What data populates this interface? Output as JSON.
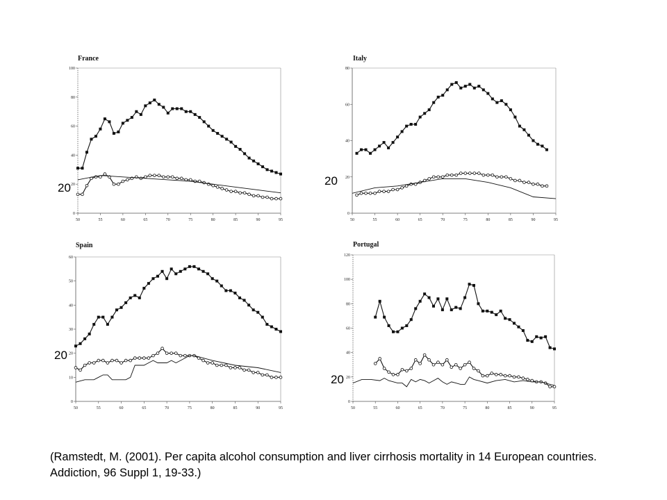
{
  "citation": "(Ramstedt, M. (2001). Per capita alcohol consumption and liver cirrhosis mortality in 14 European countries. Addiction, 96 Suppl 1, 19-33.)",
  "colors": {
    "series": "#111111",
    "axis": "#555555",
    "marker_fill_open": "#ffffff"
  },
  "chart_data": [
    {
      "type": "line",
      "title": "France",
      "side_label": "20",
      "x_ticks": [
        "50",
        "55",
        "60",
        "65",
        "70",
        "75",
        "80",
        "85",
        "90",
        "95"
      ],
      "y_ticks": [
        "0",
        "20",
        "40",
        "60",
        "80",
        "100"
      ],
      "xlim": [
        50,
        95
      ],
      "ylim": [
        0,
        100
      ],
      "series": [
        {
          "marker": "filled",
          "x": [
            50,
            51,
            52,
            53,
            54,
            55,
            56,
            57,
            58,
            59,
            60,
            61,
            62,
            63,
            64,
            65,
            66,
            67,
            68,
            69,
            70,
            71,
            72,
            73,
            74,
            75,
            76,
            77,
            78,
            79,
            80,
            81,
            82,
            83,
            84,
            85,
            86,
            87,
            88,
            89,
            90,
            91,
            92,
            93,
            94,
            95
          ],
          "values": [
            31,
            31,
            42,
            51,
            53,
            58,
            65,
            63,
            55,
            56,
            62,
            64,
            66,
            70,
            68,
            74,
            76,
            78,
            75,
            73,
            69,
            72,
            72,
            72,
            70,
            70,
            68,
            66,
            63,
            60,
            57,
            55,
            53,
            51,
            49,
            46,
            44,
            41,
            38,
            36,
            34,
            32,
            30,
            29,
            28,
            27
          ]
        },
        {
          "marker": "open",
          "x": [
            50,
            51,
            52,
            53,
            54,
            55,
            56,
            57,
            58,
            59,
            60,
            61,
            62,
            63,
            64,
            65,
            66,
            67,
            68,
            69,
            70,
            71,
            72,
            73,
            74,
            75,
            76,
            77,
            78,
            79,
            80,
            81,
            82,
            83,
            84,
            85,
            86,
            87,
            88,
            89,
            90,
            91,
            92,
            93,
            94,
            95
          ],
          "values": [
            13,
            13,
            19,
            24,
            25,
            25,
            27,
            25,
            20,
            20,
            22,
            23,
            24,
            25,
            24,
            25,
            26,
            26,
            26,
            25,
            25,
            25,
            24,
            24,
            23,
            23,
            22,
            22,
            21,
            20,
            19,
            18,
            17,
            16,
            15,
            15,
            14,
            14,
            13,
            12,
            12,
            11,
            11,
            10,
            10,
            10
          ]
        },
        {
          "marker": "none",
          "x": [
            50,
            55,
            60,
            65,
            70,
            75,
            80,
            85,
            90,
            95
          ],
          "values": [
            23,
            26,
            25,
            24,
            23,
            22,
            20,
            18,
            16,
            14
          ]
        }
      ]
    },
    {
      "type": "line",
      "title": "Italy",
      "side_label": "20",
      "x_ticks": [
        "50",
        "55",
        "60",
        "65",
        "70",
        "75",
        "80",
        "85",
        "90",
        "95"
      ],
      "y_ticks": [
        "0",
        "20",
        "40",
        "60",
        "80"
      ],
      "xlim": [
        50,
        95
      ],
      "ylim": [
        0,
        80
      ],
      "series": [
        {
          "marker": "filled",
          "x": [
            51,
            52,
            53,
            54,
            55,
            56,
            57,
            58,
            59,
            60,
            61,
            62,
            63,
            64,
            65,
            66,
            67,
            68,
            69,
            70,
            71,
            72,
            73,
            74,
            75,
            76,
            77,
            78,
            79,
            80,
            81,
            82,
            83,
            84,
            85,
            86,
            87,
            88,
            89,
            90,
            91,
            92,
            93
          ],
          "values": [
            33,
            35,
            35,
            33,
            35,
            37,
            39,
            36,
            39,
            42,
            45,
            48,
            49,
            49,
            53,
            55,
            57,
            61,
            64,
            65,
            68,
            71,
            72,
            69,
            70,
            71,
            69,
            70,
            68,
            66,
            63,
            61,
            62,
            60,
            57,
            53,
            48,
            46,
            43,
            40,
            38,
            37,
            35
          ]
        },
        {
          "marker": "open",
          "x": [
            51,
            52,
            53,
            54,
            55,
            56,
            57,
            58,
            59,
            60,
            61,
            62,
            63,
            64,
            65,
            66,
            67,
            68,
            69,
            70,
            71,
            72,
            73,
            74,
            75,
            76,
            77,
            78,
            79,
            80,
            81,
            82,
            83,
            84,
            85,
            86,
            87,
            88,
            89,
            90,
            91,
            92,
            93
          ],
          "values": [
            10,
            11,
            11,
            11,
            11,
            12,
            12,
            12,
            13,
            13,
            14,
            15,
            16,
            16,
            17,
            18,
            19,
            20,
            20,
            20,
            21,
            21,
            21,
            22,
            22,
            22,
            22,
            22,
            21,
            21,
            21,
            20,
            20,
            20,
            19,
            18,
            18,
            17,
            17,
            16,
            16,
            15,
            15
          ]
        },
        {
          "marker": "none",
          "x": [
            50,
            55,
            60,
            65,
            70,
            75,
            80,
            85,
            90,
            95
          ],
          "values": [
            11,
            14,
            15,
            17,
            19,
            19,
            17,
            14,
            9,
            8
          ]
        }
      ]
    },
    {
      "type": "line",
      "title": "Spain",
      "side_label": "20",
      "x_ticks": [
        "50",
        "55",
        "60",
        "65",
        "70",
        "75",
        "80",
        "85",
        "90",
        "95"
      ],
      "y_ticks": [
        "0",
        "10",
        "20",
        "30",
        "40",
        "50",
        "60"
      ],
      "xlim": [
        50,
        95
      ],
      "ylim": [
        0,
        60
      ],
      "series": [
        {
          "marker": "filled",
          "x": [
            50,
            51,
            52,
            53,
            54,
            55,
            56,
            57,
            58,
            59,
            60,
            61,
            62,
            63,
            64,
            65,
            66,
            67,
            68,
            69,
            70,
            71,
            72,
            73,
            74,
            75,
            76,
            77,
            78,
            79,
            80,
            81,
            82,
            83,
            84,
            85,
            86,
            87,
            88,
            89,
            90,
            91,
            92,
            93,
            94,
            95
          ],
          "values": [
            23,
            24,
            26,
            28,
            32,
            35,
            35,
            32,
            35,
            38,
            39,
            41,
            43,
            44,
            43,
            47,
            49,
            51,
            52,
            54,
            51,
            55,
            53,
            54,
            55,
            56,
            56,
            55,
            54,
            53,
            51,
            50,
            48,
            46,
            46,
            45,
            43,
            42,
            40,
            38,
            37,
            35,
            32,
            31,
            30,
            29
          ]
        },
        {
          "marker": "open",
          "x": [
            50,
            51,
            52,
            53,
            54,
            55,
            56,
            57,
            58,
            59,
            60,
            61,
            62,
            63,
            64,
            65,
            66,
            67,
            68,
            69,
            70,
            71,
            72,
            73,
            74,
            75,
            76,
            77,
            78,
            79,
            80,
            81,
            82,
            83,
            84,
            85,
            86,
            87,
            88,
            89,
            90,
            91,
            92,
            93,
            94,
            95
          ],
          "values": [
            14,
            13,
            15,
            16,
            16,
            17,
            17,
            16,
            17,
            17,
            16,
            17,
            17,
            18,
            18,
            18,
            18,
            19,
            20,
            22,
            20,
            20,
            20,
            19,
            19,
            19,
            19,
            18,
            17,
            16,
            16,
            15,
            15,
            15,
            14,
            14,
            14,
            13,
            13,
            12,
            12,
            11,
            11,
            10,
            10,
            10
          ]
        },
        {
          "marker": "none",
          "x": [
            50,
            52,
            54,
            55,
            56,
            57,
            58,
            59,
            60,
            61,
            62,
            63,
            64,
            65,
            66,
            67,
            68,
            69,
            70,
            71,
            72,
            73,
            74,
            75,
            76,
            78,
            80,
            85,
            90,
            95
          ],
          "values": [
            8,
            9,
            9,
            10,
            11,
            11,
            9,
            9,
            9,
            9,
            10,
            15,
            15,
            15,
            16,
            17,
            16,
            16,
            16,
            17,
            16,
            17,
            18,
            19,
            19,
            18,
            17,
            15,
            14,
            12
          ]
        }
      ]
    },
    {
      "type": "line",
      "title": "Portugal",
      "side_label": "20",
      "x_ticks": [
        "50",
        "55",
        "60",
        "65",
        "70",
        "75",
        "80",
        "85",
        "90",
        "95"
      ],
      "y_ticks": [
        "0",
        "20",
        "40",
        "60",
        "80",
        "100",
        "120"
      ],
      "xlim": [
        50,
        95
      ],
      "ylim": [
        0,
        120
      ],
      "series": [
        {
          "marker": "filled",
          "x": [
            55,
            56,
            57,
            58,
            59,
            60,
            61,
            62,
            63,
            64,
            65,
            66,
            67,
            68,
            69,
            70,
            71,
            72,
            73,
            74,
            75,
            76,
            77,
            78,
            79,
            80,
            81,
            82,
            83,
            84,
            85,
            86,
            87,
            88,
            89,
            90,
            91,
            92,
            93,
            94,
            95
          ],
          "values": [
            69,
            82,
            69,
            62,
            57,
            57,
            60,
            62,
            67,
            76,
            82,
            88,
            85,
            78,
            84,
            75,
            84,
            75,
            77,
            76,
            85,
            96,
            95,
            80,
            74,
            74,
            73,
            71,
            74,
            68,
            67,
            64,
            61,
            58,
            50,
            49,
            53,
            52,
            53,
            44,
            43
          ]
        },
        {
          "marker": "open",
          "x": [
            55,
            56,
            57,
            58,
            59,
            60,
            61,
            62,
            63,
            64,
            65,
            66,
            67,
            68,
            69,
            70,
            71,
            72,
            73,
            74,
            75,
            76,
            77,
            78,
            79,
            80,
            81,
            82,
            83,
            84,
            85,
            86,
            87,
            88,
            89,
            90,
            91,
            92,
            93,
            94,
            95
          ],
          "values": [
            31,
            35,
            27,
            24,
            22,
            22,
            26,
            25,
            27,
            34,
            31,
            38,
            34,
            30,
            32,
            30,
            34,
            28,
            30,
            27,
            30,
            32,
            27,
            25,
            21,
            21,
            23,
            22,
            22,
            21,
            21,
            20,
            20,
            19,
            18,
            17,
            16,
            16,
            15,
            12,
            12
          ]
        },
        {
          "marker": "none",
          "x": [
            50,
            52,
            54,
            56,
            57,
            58,
            60,
            61,
            62,
            63,
            64,
            65,
            66,
            67,
            68,
            69,
            70,
            71,
            72,
            73,
            74,
            75,
            76,
            77,
            78,
            80,
            82,
            84,
            86,
            88,
            90,
            92,
            94,
            95
          ],
          "values": [
            15,
            18,
            18,
            17,
            19,
            17,
            15,
            15,
            12,
            18,
            16,
            18,
            17,
            15,
            17,
            19,
            16,
            14,
            16,
            15,
            14,
            14,
            20,
            18,
            17,
            15,
            17,
            18,
            16,
            17,
            16,
            16,
            14,
            13
          ]
        }
      ]
    }
  ]
}
